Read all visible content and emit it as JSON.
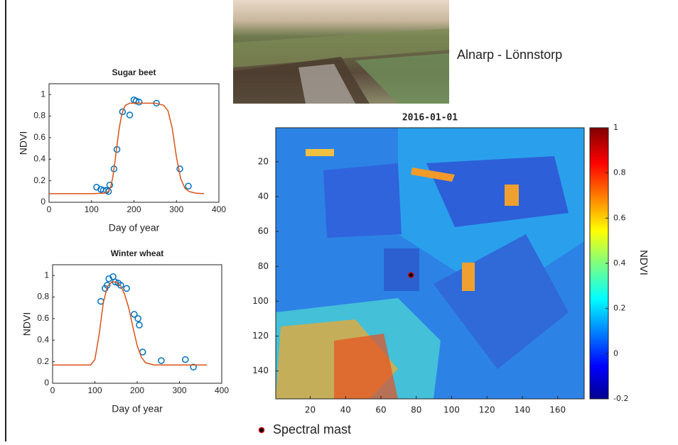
{
  "chart_data": [
    {
      "type": "scatter",
      "title": "Sugar beet",
      "x_label": "Day of year",
      "y_label": "NDVI",
      "xlim": [
        0,
        400
      ],
      "ylim": [
        0,
        1.1
      ],
      "xticks": [
        0,
        100,
        200,
        300,
        400
      ],
      "yticks": [
        0,
        0.2,
        0.4,
        0.6,
        0.8,
        1
      ],
      "series": [
        {
          "marker": "circle",
          "color": "#0072bd",
          "x": [
            112,
            122,
            128,
            135,
            140,
            143,
            153,
            160,
            173,
            190,
            200,
            205,
            212,
            253,
            308,
            328
          ],
          "values": [
            0.14,
            0.12,
            0.11,
            0.11,
            0.1,
            0.16,
            0.31,
            0.49,
            0.84,
            0.81,
            0.95,
            0.94,
            0.93,
            0.92,
            0.31,
            0.15
          ]
        },
        {
          "marker": "line",
          "color": "#d95319",
          "x": [
            0,
            50,
            100,
            130,
            140,
            145,
            150,
            155,
            160,
            165,
            170,
            175,
            180,
            190,
            250,
            270,
            280,
            290,
            300,
            310,
            320,
            330,
            345,
            365
          ],
          "values": [
            0.08,
            0.08,
            0.08,
            0.085,
            0.1,
            0.14,
            0.23,
            0.37,
            0.53,
            0.68,
            0.79,
            0.86,
            0.9,
            0.92,
            0.92,
            0.9,
            0.85,
            0.69,
            0.42,
            0.22,
            0.13,
            0.1,
            0.085,
            0.08
          ]
        }
      ]
    },
    {
      "type": "scatter",
      "title": "Winter wheat",
      "x_label": "Day of year",
      "y_label": "NDVI",
      "xlim": [
        0,
        400
      ],
      "ylim": [
        0,
        1.1
      ],
      "xticks": [
        0,
        100,
        200,
        300,
        400
      ],
      "yticks": [
        0,
        0.2,
        0.4,
        0.6,
        0.8,
        1
      ],
      "series": [
        {
          "marker": "circle",
          "color": "#0072bd",
          "x": [
            114,
            124,
            129,
            133,
            143,
            148,
            155,
            161,
            175,
            193,
            202,
            205,
            213,
            257,
            314,
            333
          ],
          "values": [
            0.76,
            0.88,
            0.91,
            0.97,
            0.99,
            0.94,
            0.93,
            0.91,
            0.88,
            0.64,
            0.6,
            0.54,
            0.29,
            0.21,
            0.22,
            0.15
          ]
        },
        {
          "marker": "line",
          "color": "#d95319",
          "x": [
            0,
            50,
            90,
            100,
            110,
            120,
            130,
            140,
            150,
            160,
            170,
            180,
            190,
            200,
            210,
            220,
            240,
            300,
            365
          ],
          "values": [
            0.17,
            0.17,
            0.17,
            0.22,
            0.45,
            0.75,
            0.9,
            0.94,
            0.94,
            0.91,
            0.83,
            0.7,
            0.52,
            0.35,
            0.24,
            0.19,
            0.17,
            0.17,
            0.17
          ]
        }
      ]
    },
    {
      "type": "heatmap",
      "title": "2016-01-01",
      "colorbar_label": "NDVI",
      "xlim": [
        0.5,
        175
      ],
      "ylim": [
        0.5,
        156
      ],
      "xticks": [
        20,
        40,
        60,
        80,
        100,
        120,
        140,
        160
      ],
      "yticks": [
        20,
        40,
        60,
        80,
        100,
        120,
        140
      ],
      "clim": [
        -0.2,
        1
      ],
      "cticks": [
        -0.2,
        0,
        0.2,
        0.4,
        0.6,
        0.8,
        1
      ],
      "series": [
        {
          "name": "Spectral mast",
          "color": "#000000",
          "x": [
            77
          ],
          "values": [
            85
          ]
        }
      ]
    }
  ],
  "photo_caption": "Alnarp - Lönnstorp"
}
